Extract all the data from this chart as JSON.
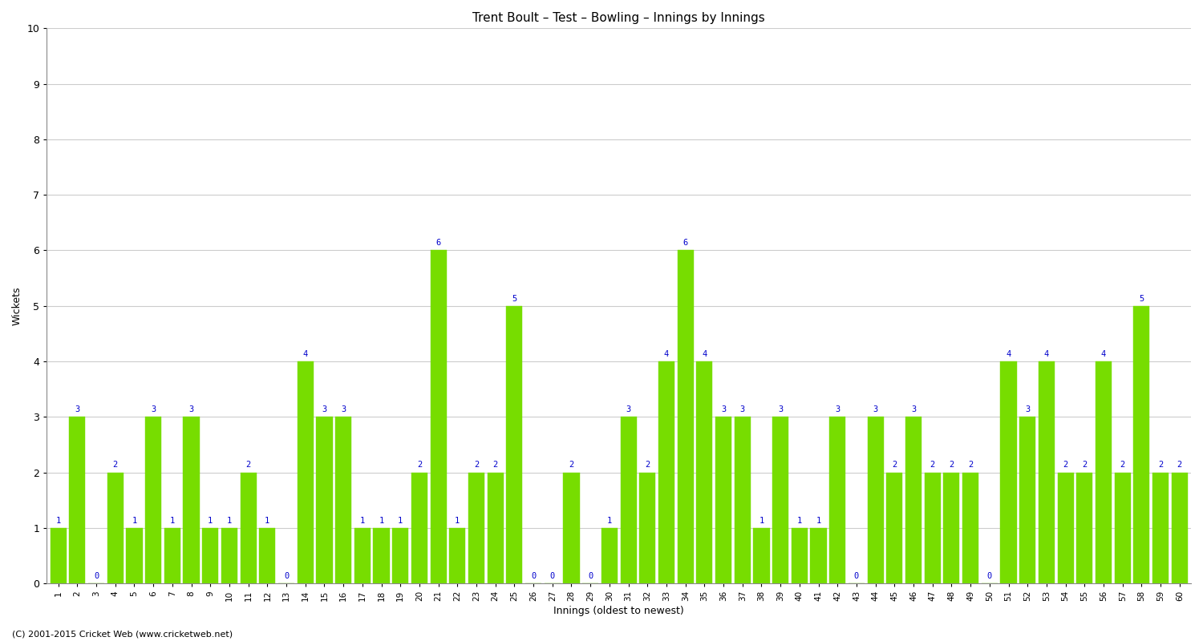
{
  "title": "Trent Boult – Test – Bowling – Innings by Innings",
  "xlabel": "Innings (oldest to newest)",
  "ylabel": "Wickets",
  "ylim": [
    0,
    10
  ],
  "yticks": [
    0,
    1,
    2,
    3,
    4,
    5,
    6,
    7,
    8,
    9,
    10
  ],
  "bar_color": "#77DD00",
  "label_color": "#0000CC",
  "background_color": "#FFFFFF",
  "grid_color": "#CCCCCC",
  "innings": [
    1,
    2,
    3,
    4,
    5,
    6,
    7,
    8,
    9,
    10,
    11,
    12,
    13,
    14,
    15,
    16,
    17,
    18,
    19,
    20,
    21,
    22,
    23,
    24,
    25,
    26,
    27,
    28,
    29,
    30,
    31,
    32,
    33,
    34,
    35,
    36,
    37,
    38,
    39,
    40,
    41,
    42,
    43,
    44,
    45,
    46,
    47,
    48,
    49,
    50,
    51,
    52,
    53,
    54,
    55,
    56,
    57,
    58,
    59,
    60
  ],
  "wickets": [
    1,
    3,
    0,
    2,
    1,
    3,
    1,
    3,
    1,
    1,
    2,
    1,
    0,
    4,
    3,
    3,
    1,
    1,
    1,
    2,
    6,
    1,
    2,
    2,
    5,
    0,
    0,
    2,
    0,
    1,
    3,
    2,
    4,
    6,
    4,
    3,
    3,
    1,
    3,
    1,
    1,
    3,
    0,
    3,
    2,
    3,
    2,
    2,
    2,
    0,
    4,
    3,
    4,
    2,
    2,
    4,
    2,
    5,
    2,
    2
  ],
  "footer": "(C) 2001-2015 Cricket Web (www.cricketweb.net)"
}
